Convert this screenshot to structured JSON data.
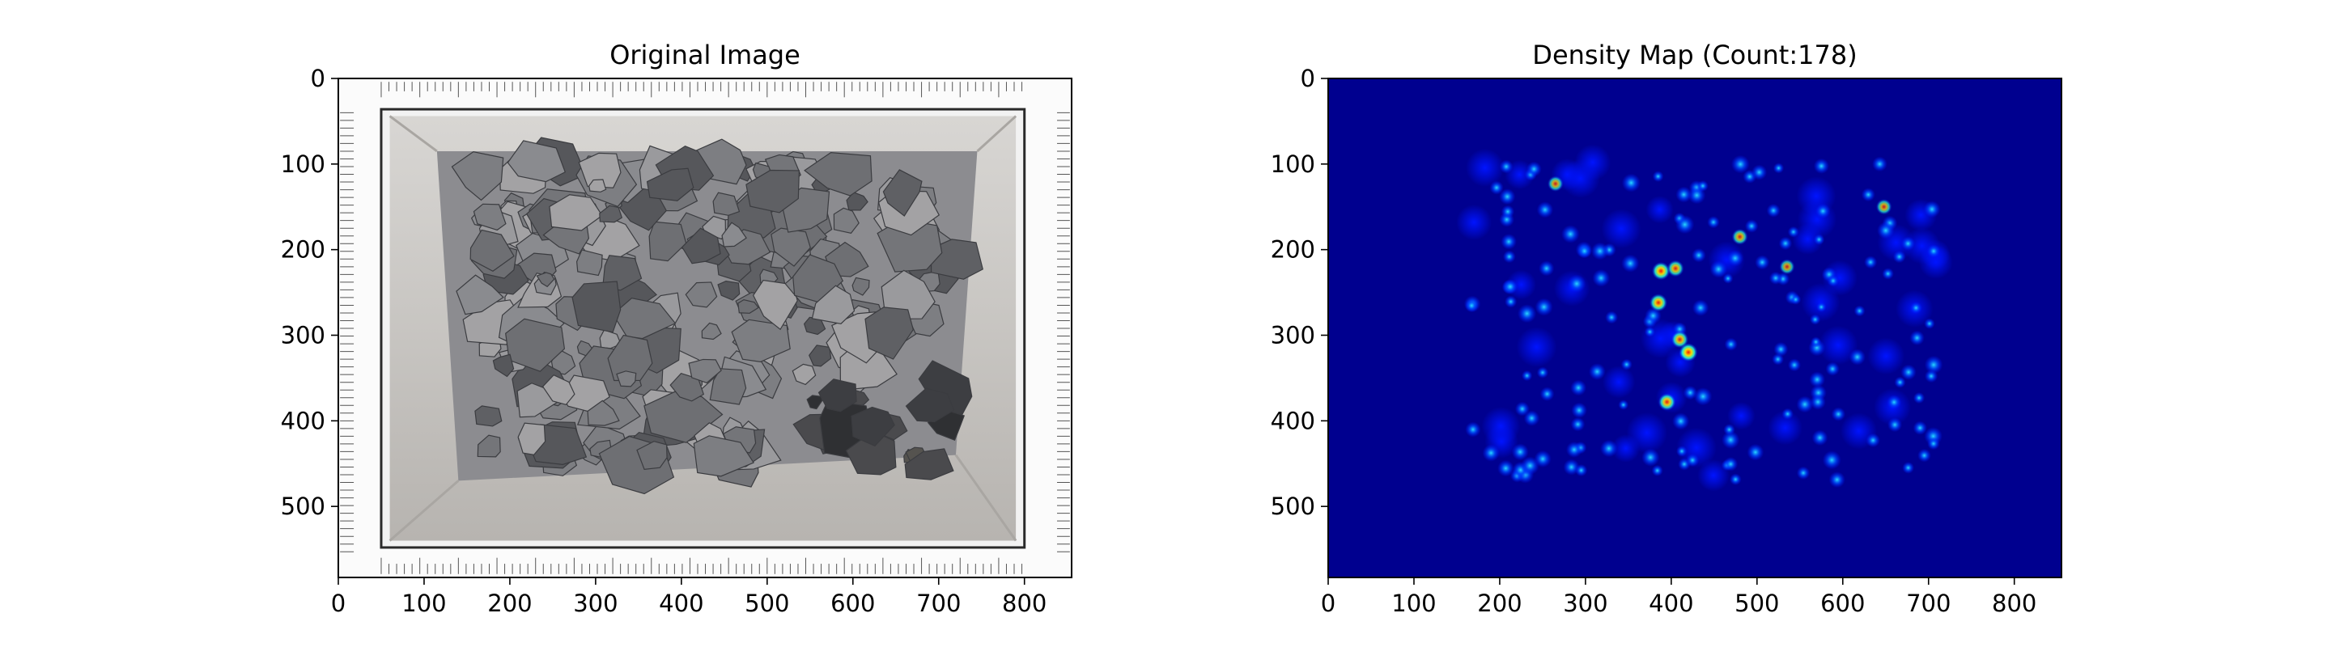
{
  "chart_data": [
    {
      "type": "image",
      "title": "Original Image",
      "xticks": [
        0,
        100,
        200,
        300,
        400,
        500,
        600,
        700,
        800
      ],
      "yticks": [
        0,
        100,
        200,
        300,
        400,
        500
      ],
      "xlim": [
        0,
        855
      ],
      "ylim": [
        583,
        0
      ],
      "description_colors": {
        "box": "#c9c7c4",
        "rock": "#7b7c80",
        "ruler": "#f4f4f4"
      }
    },
    {
      "type": "heatmap",
      "title": "Density Map (Count:178)",
      "count": 178,
      "colormap": "jet",
      "xticks": [
        0,
        100,
        200,
        300,
        400,
        500,
        600,
        700,
        800
      ],
      "yticks": [
        0,
        100,
        200,
        300,
        400,
        500
      ],
      "xlim": [
        0,
        855
      ],
      "ylim": [
        583,
        0
      ],
      "hotspots": [
        {
          "x": 265,
          "y": 123,
          "v": 0.55
        },
        {
          "x": 388,
          "y": 225,
          "v": 0.9
        },
        {
          "x": 405,
          "y": 222,
          "v": 0.7
        },
        {
          "x": 385,
          "y": 262,
          "v": 0.85
        },
        {
          "x": 410,
          "y": 305,
          "v": 0.75
        },
        {
          "x": 420,
          "y": 320,
          "v": 0.95
        },
        {
          "x": 395,
          "y": 378,
          "v": 0.8
        },
        {
          "x": 480,
          "y": 185,
          "v": 0.6
        },
        {
          "x": 648,
          "y": 150,
          "v": 0.55
        },
        {
          "x": 535,
          "y": 220,
          "v": 0.5
        }
      ]
    }
  ]
}
